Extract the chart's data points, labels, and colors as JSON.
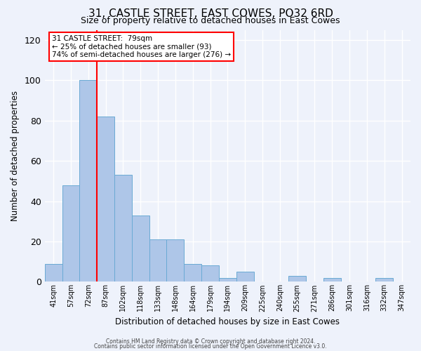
{
  "title": "31, CASTLE STREET, EAST COWES, PO32 6RD",
  "subtitle": "Size of property relative to detached houses in East Cowes",
  "xlabel": "Distribution of detached houses by size in East Cowes",
  "ylabel": "Number of detached properties",
  "bar_labels": [
    "41sqm",
    "57sqm",
    "72sqm",
    "87sqm",
    "102sqm",
    "118sqm",
    "133sqm",
    "148sqm",
    "164sqm",
    "179sqm",
    "194sqm",
    "209sqm",
    "225sqm",
    "240sqm",
    "255sqm",
    "271sqm",
    "286sqm",
    "301sqm",
    "316sqm",
    "332sqm",
    "347sqm"
  ],
  "bar_heights": [
    9,
    48,
    100,
    82,
    53,
    33,
    21,
    21,
    9,
    8,
    2,
    5,
    0,
    0,
    3,
    0,
    2,
    0,
    0,
    2,
    0
  ],
  "bar_color": "#aec6e8",
  "bar_edge_color": "#6aaad4",
  "ylim": [
    0,
    125
  ],
  "yticks": [
    0,
    20,
    40,
    60,
    80,
    100,
    120
  ],
  "vline_color": "red",
  "annotation_title": "31 CASTLE STREET:  79sqm",
  "annotation_line1": "← 25% of detached houses are smaller (93)",
  "annotation_line2": "74% of semi-detached houses are larger (276) →",
  "annotation_box_color": "#ffffff",
  "annotation_border_color": "red",
  "footer1": "Contains HM Land Registry data © Crown copyright and database right 2024.",
  "footer2": "Contains public sector information licensed under the Open Government Licence v3.0.",
  "background_color": "#eef2fb",
  "plot_bg_color": "#eef2fb",
  "title_fontsize": 11,
  "subtitle_fontsize": 9
}
